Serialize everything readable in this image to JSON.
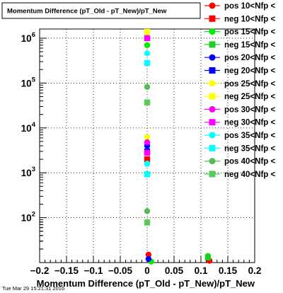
{
  "chart_data": {
    "type": "scatter",
    "title": "Momentum Difference (pT_Old - pT_New)/pT_New",
    "xlabel": "Momentum Difference (pT_Old - pT_New)/pT_New",
    "ylabel": "",
    "xlim": [
      -0.2,
      0.2
    ],
    "ylim": [
      10,
      1600000
    ],
    "y_scale": "log",
    "grid": true,
    "legend_position": "right",
    "x_ticks": [
      -0.2,
      -0.15,
      -0.1,
      -0.05,
      0,
      0.05,
      0.1,
      0.15,
      0.2
    ],
    "x_tick_labels": [
      "−0.2",
      "−0.15",
      "−0.1",
      "−0.05",
      "0",
      "0.05",
      "0.1",
      "0.15",
      "0.2"
    ],
    "y_ticks": [
      100,
      1000,
      10000,
      100000,
      1000000
    ],
    "y_tick_labels": [
      {
        "base": "10",
        "exp": "2"
      },
      {
        "base": "10",
        "exp": "3"
      },
      {
        "base": "10",
        "exp": "4"
      },
      {
        "base": "10",
        "exp": "5"
      },
      {
        "base": "10",
        "exp": "6"
      }
    ],
    "series": [
      {
        "name": "pos 10<Nfp <",
        "marker": "circle",
        "color": "#ff0000",
        "points": [
          [
            0.0025,
            15
          ],
          [
            0.116,
            11
          ]
        ]
      },
      {
        "name": "neg 10<Nfp <",
        "marker": "square",
        "color": "#ff0000",
        "points": [
          [
            0,
            2000
          ]
        ]
      },
      {
        "name": "pos 15<Nfp <",
        "marker": "circle",
        "color": "#00ee00",
        "points": [
          [
            0.0075,
            10.5
          ],
          [
            0.113,
            14
          ]
        ]
      },
      {
        "name": "neg 15<Nfp <",
        "marker": "square",
        "color": "#22cc22",
        "points": [
          [
            0.113,
            13
          ]
        ]
      },
      {
        "name": "pos 20<Nfp <",
        "marker": "circle",
        "color": "#0000ff",
        "points": [
          [
            0.0025,
            12
          ],
          [
            0,
            4000
          ]
        ]
      },
      {
        "name": "neg 20<Nfp <",
        "marker": "square",
        "color": "#0000ff",
        "points": [
          [
            0,
            3000
          ]
        ]
      },
      {
        "name": "pos 25<Nfp <",
        "marker": "circle",
        "color": "#ffff00",
        "points": [
          [
            0,
            6200
          ]
        ]
      },
      {
        "name": "neg 25<Nfp <",
        "marker": "square",
        "color": "#ffff00",
        "points": [
          [
            0,
            1380000
          ]
        ]
      },
      {
        "name": "pos 30<Nfp <",
        "marker": "circle",
        "color": "#ff00ff",
        "points": [
          [
            0,
            4800
          ]
        ]
      },
      {
        "name": "neg 30<Nfp <",
        "marker": "square",
        "color": "#ff00ff",
        "points": [
          [
            0,
            1000000
          ],
          [
            0,
            2800
          ]
        ]
      },
      {
        "name": "pos 35<Nfp <",
        "marker": "circle",
        "color": "#00ffff",
        "points": [
          [
            0,
            460000
          ],
          [
            0,
            1600
          ]
        ]
      },
      {
        "name": "neg 35<Nfp <",
        "marker": "square",
        "color": "#00ffff",
        "points": [
          [
            0,
            280000
          ],
          [
            0,
            930
          ]
        ]
      },
      {
        "name": "pos 40<Nfp <",
        "marker": "circle",
        "color": "#55bb55",
        "points": [
          [
            0,
            82000
          ],
          [
            0,
            140
          ]
        ]
      },
      {
        "name": "neg 40<Nfp <",
        "marker": "square",
        "color": "#55cc55",
        "points": [
          [
            0,
            37000
          ],
          [
            0,
            78
          ]
        ],
        "overlap_color": "#00ee00",
        "overlap_points": [
          [
            0,
            700000
          ]
        ]
      }
    ]
  },
  "timestamp": "Tue Mar 29 15:21:31 2016"
}
